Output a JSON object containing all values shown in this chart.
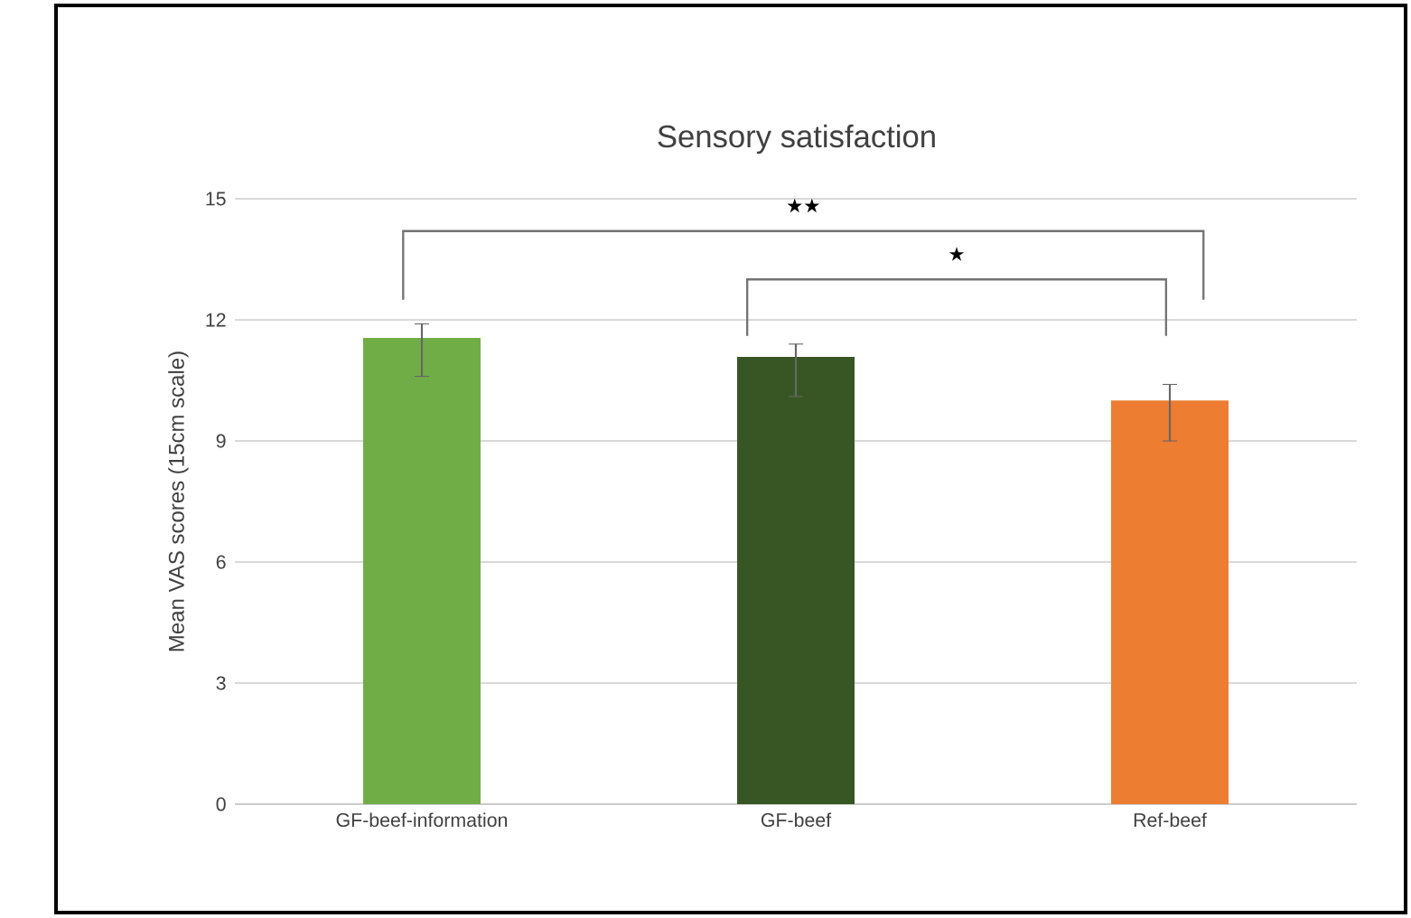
{
  "chart_data": {
    "type": "bar",
    "title": "Sensory satisfaction",
    "ylabel": "Mean VAS scores (15cm scale)",
    "categories": [
      "GF-beef-information",
      "GF-beef",
      "Ref-beef"
    ],
    "values": [
      11.55,
      11.08,
      10.0
    ],
    "colors": [
      "#70ad47",
      "#375623",
      "#ed7d31"
    ],
    "errors": [
      [
        10.6,
        11.9
      ],
      [
        10.1,
        11.4
      ],
      [
        9.0,
        10.4
      ]
    ],
    "ylim": [
      0,
      15
    ],
    "yticks": [
      0,
      3,
      6,
      9,
      12,
      15
    ],
    "grid": "y",
    "annotations": [
      "★★",
      "★"
    ]
  }
}
